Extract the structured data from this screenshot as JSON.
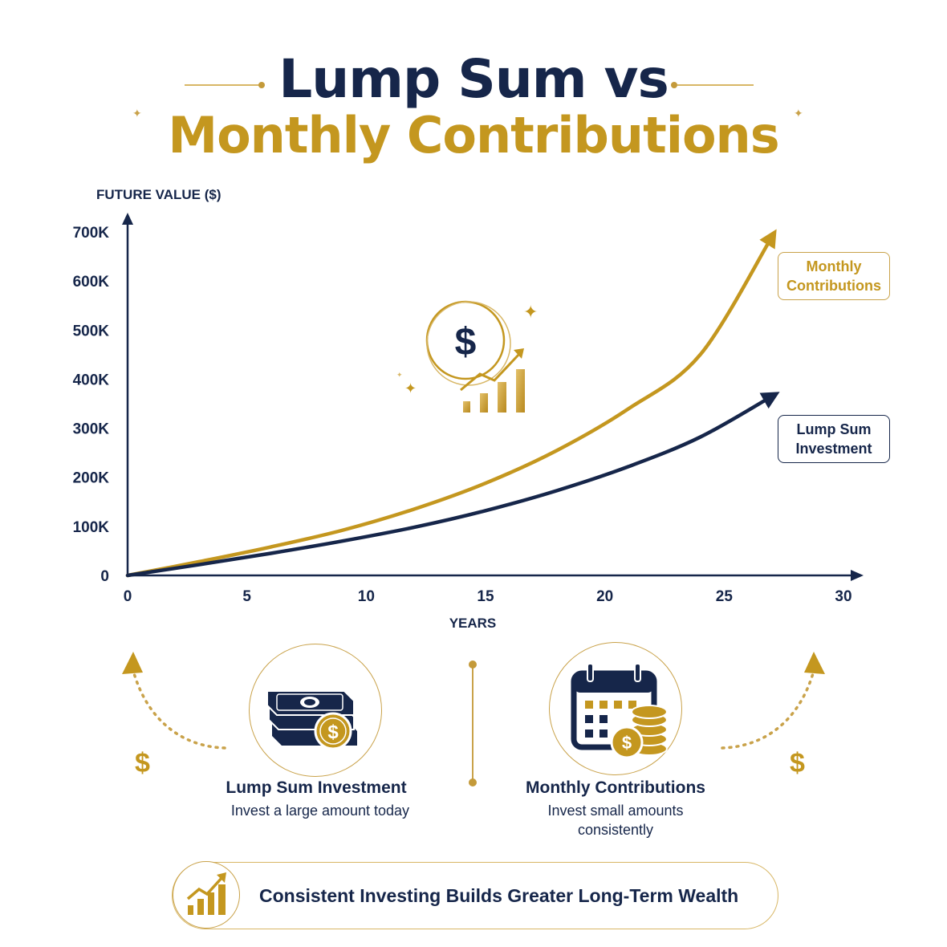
{
  "header": {
    "title_line1": "Lump Sum vs",
    "title_line2": "Monthly Contributions"
  },
  "colors": {
    "navy": "#16264a",
    "gold": "#c4971f",
    "gold_light": "#d8b766"
  },
  "chart_data": {
    "type": "line",
    "ylabel": "FUTURE VALUE ($)",
    "xlabel": "YEARS",
    "x_ticks": [
      0,
      5,
      10,
      15,
      20,
      25,
      30
    ],
    "x_tick_labels": [
      "0",
      "5",
      "10",
      "15",
      "20",
      "25",
      "30"
    ],
    "y_ticks": [
      0,
      100000,
      200000,
      300000,
      400000,
      500000,
      600000,
      700000
    ],
    "y_tick_labels": [
      "0",
      "100K",
      "200K",
      "300K",
      "400K",
      "500K",
      "600K",
      "700K"
    ],
    "xlim": [
      0,
      30
    ],
    "ylim": [
      0,
      700000
    ],
    "grid": false,
    "legend_placement": "right",
    "series": [
      {
        "name": "Monthly Contributions",
        "color": "#c4971f",
        "x": [
          0,
          3,
          6,
          9,
          12,
          15,
          18,
          21,
          24,
          27
        ],
        "y": [
          0,
          28000,
          58000,
          92000,
          135000,
          188000,
          255000,
          340000,
          450000,
          690000
        ]
      },
      {
        "name": "Lump Sum Investment",
        "color": "#16264a",
        "x": [
          0,
          3,
          6,
          9,
          12,
          15,
          18,
          21,
          24,
          27
        ],
        "y": [
          0,
          22000,
          45000,
          70000,
          98000,
          132000,
          173000,
          222000,
          282000,
          365000
        ]
      }
    ]
  },
  "legend": {
    "monthly": "Monthly Contributions",
    "lump": "Lump Sum Investment"
  },
  "cards": {
    "lump": {
      "title": "Lump Sum Investment",
      "desc": "Invest a large amount today",
      "icon": "cash-stack-icon"
    },
    "monthly": {
      "title": "Monthly Contributions",
      "desc": "Invest small amounts consistently",
      "icon": "calendar-coins-icon"
    }
  },
  "side_symbol": "$",
  "banner": {
    "text": "Consistent Investing Builds Greater Long-Term Wealth",
    "icon": "growth-chart-icon"
  }
}
